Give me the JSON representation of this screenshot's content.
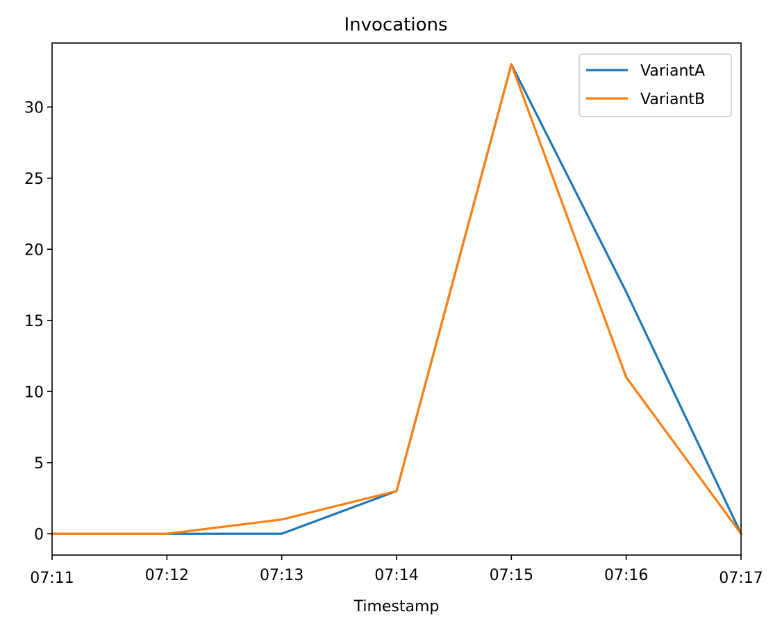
{
  "chart_data": {
    "type": "line",
    "title": "Invocations",
    "xlabel": "Timestamp",
    "ylabel": "",
    "x": [
      "07:11",
      "07:12",
      "07:13",
      "07:14",
      "07:15",
      "07:16",
      "07:17"
    ],
    "ylim": [
      -1.5,
      34.5
    ],
    "yticks": [
      0,
      5,
      10,
      15,
      20,
      25,
      30
    ],
    "series": [
      {
        "name": "VariantA",
        "color": "#1f77b4",
        "values": [
          0,
          0,
          0,
          3,
          33,
          17,
          0
        ]
      },
      {
        "name": "VariantB",
        "color": "#ff7f0e",
        "values": [
          0,
          0,
          1,
          3,
          33,
          11,
          0
        ]
      }
    ],
    "legend": "top-right",
    "grid": false
  }
}
